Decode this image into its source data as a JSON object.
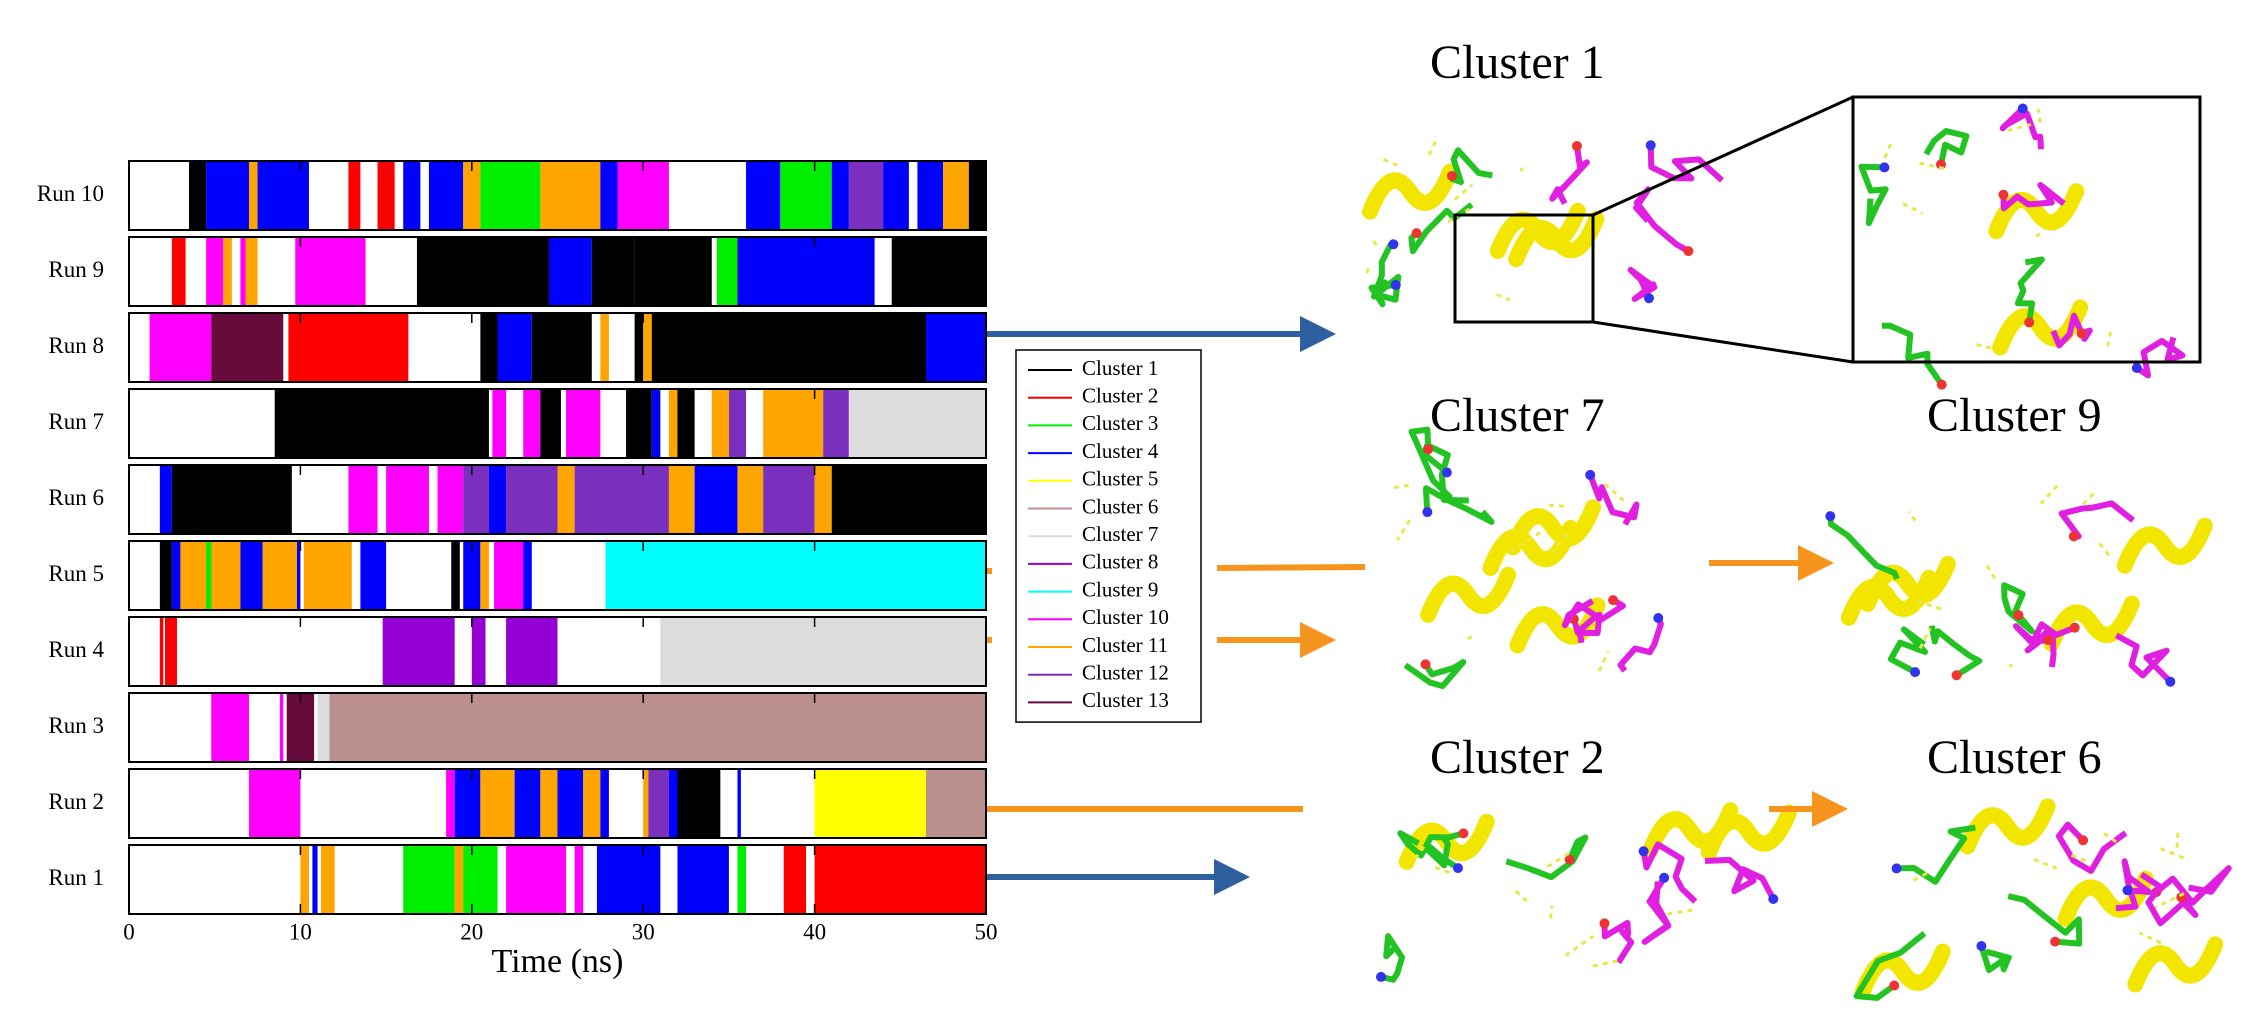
{
  "chart_data": {
    "type": "timeline",
    "xlabel": "Time (ns)",
    "xlim": [
      0,
      50
    ],
    "xticks": [
      0,
      10,
      20,
      30,
      40,
      50
    ],
    "legend": [
      {
        "name": "Cluster 1",
        "color": "#000000"
      },
      {
        "name": "Cluster 2",
        "color": "#ff0000"
      },
      {
        "name": "Cluster 3",
        "color": "#00ee00"
      },
      {
        "name": "Cluster 4",
        "color": "#0000ff"
      },
      {
        "name": "Cluster 5",
        "color": "#ffff00"
      },
      {
        "name": "Cluster 6",
        "color": "#bc8f8f"
      },
      {
        "name": "Cluster 7",
        "color": "#dcdcdc"
      },
      {
        "name": "Cluster 8",
        "color": "#9400d3"
      },
      {
        "name": "Cluster 9",
        "color": "#00ffff"
      },
      {
        "name": "Cluster 10",
        "color": "#ff00ff"
      },
      {
        "name": "Cluster 11",
        "color": "#ffa500"
      },
      {
        "name": "Cluster 12",
        "color": "#7b2fbe"
      },
      {
        "name": "Cluster 13",
        "color": "#670a3c"
      }
    ],
    "runs": [
      {
        "name": "Run 1",
        "segments": [
          {
            "cluster": "Cluster 11",
            "start": 10,
            "end": 10.5
          },
          {
            "cluster": "Cluster 4",
            "start": 10.7,
            "end": 11
          },
          {
            "cluster": "Cluster 11",
            "start": 11.2,
            "end": 12
          },
          {
            "cluster": "Cluster 3",
            "start": 16,
            "end": 19
          },
          {
            "cluster": "Cluster 11",
            "start": 19,
            "end": 19.5
          },
          {
            "cluster": "Cluster 3",
            "start": 19.5,
            "end": 21.5
          },
          {
            "cluster": "Cluster 10",
            "start": 22,
            "end": 25.5
          },
          {
            "cluster": "Cluster 10",
            "start": 26,
            "end": 26.5
          },
          {
            "cluster": "Cluster 4",
            "start": 27.3,
            "end": 31
          },
          {
            "cluster": "Cluster 4",
            "start": 32,
            "end": 35
          },
          {
            "cluster": "Cluster 3",
            "start": 35.5,
            "end": 36
          },
          {
            "cluster": "Cluster 2",
            "start": 38.2,
            "end": 39.5
          },
          {
            "cluster": "Cluster 2",
            "start": 40,
            "end": 50
          }
        ]
      },
      {
        "name": "Run 2",
        "segments": [
          {
            "cluster": "Cluster 10",
            "start": 7,
            "end": 10
          },
          {
            "cluster": "Cluster 10",
            "start": 18.5,
            "end": 19
          },
          {
            "cluster": "Cluster 4",
            "start": 19,
            "end": 20.5
          },
          {
            "cluster": "Cluster 11",
            "start": 20.5,
            "end": 22.5
          },
          {
            "cluster": "Cluster 4",
            "start": 22.5,
            "end": 24
          },
          {
            "cluster": "Cluster 11",
            "start": 24,
            "end": 25
          },
          {
            "cluster": "Cluster 4",
            "start": 25,
            "end": 26.5
          },
          {
            "cluster": "Cluster 11",
            "start": 26.5,
            "end": 27.5
          },
          {
            "cluster": "Cluster 4",
            "start": 27.5,
            "end": 28
          },
          {
            "cluster": "Cluster 11",
            "start": 30,
            "end": 30.3
          },
          {
            "cluster": "Cluster 12",
            "start": 30.3,
            "end": 31.5
          },
          {
            "cluster": "Cluster 4",
            "start": 31.5,
            "end": 32
          },
          {
            "cluster": "Cluster 1",
            "start": 32,
            "end": 34.5
          },
          {
            "cluster": "Cluster 4",
            "start": 35.5,
            "end": 35.7
          },
          {
            "cluster": "Cluster 5",
            "start": 40,
            "end": 46.5
          },
          {
            "cluster": "Cluster 6",
            "start": 46.5,
            "end": 50
          }
        ]
      },
      {
        "name": "Run 3",
        "segments": [
          {
            "cluster": "Cluster 10",
            "start": 4.8,
            "end": 7
          },
          {
            "cluster": "Cluster 10",
            "start": 8.8,
            "end": 9
          },
          {
            "cluster": "Cluster 13",
            "start": 9.2,
            "end": 10.8
          },
          {
            "cluster": "Cluster 7",
            "start": 11,
            "end": 11.7
          },
          {
            "cluster": "Cluster 6",
            "start": 11.7,
            "end": 50
          }
        ]
      },
      {
        "name": "Run 4",
        "segments": [
          {
            "cluster": "Cluster 2",
            "start": 1.8,
            "end": 2
          },
          {
            "cluster": "Cluster 2",
            "start": 2.1,
            "end": 2.8
          },
          {
            "cluster": "Cluster 8",
            "start": 14.8,
            "end": 19
          },
          {
            "cluster": "Cluster 8",
            "start": 20,
            "end": 20.8
          },
          {
            "cluster": "Cluster 8",
            "start": 22,
            "end": 25
          },
          {
            "cluster": "Cluster 7",
            "start": 31,
            "end": 50
          }
        ]
      },
      {
        "name": "Run 5",
        "segments": [
          {
            "cluster": "Cluster 1",
            "start": 1.8,
            "end": 2.5
          },
          {
            "cluster": "Cluster 4",
            "start": 2.5,
            "end": 3
          },
          {
            "cluster": "Cluster 11",
            "start": 3,
            "end": 5
          },
          {
            "cluster": "Cluster 3",
            "start": 4.5,
            "end": 4.8
          },
          {
            "cluster": "Cluster 11",
            "start": 5,
            "end": 6.5
          },
          {
            "cluster": "Cluster 4",
            "start": 6.5,
            "end": 7.8
          },
          {
            "cluster": "Cluster 11",
            "start": 7.8,
            "end": 9.8
          },
          {
            "cluster": "Cluster 4",
            "start": 9.8,
            "end": 10
          },
          {
            "cluster": "Cluster 11",
            "start": 10.2,
            "end": 13
          },
          {
            "cluster": "Cluster 4",
            "start": 13.5,
            "end": 15
          },
          {
            "cluster": "Cluster 1",
            "start": 18.8,
            "end": 19.3
          },
          {
            "cluster": "Cluster 4",
            "start": 19.5,
            "end": 20.5
          },
          {
            "cluster": "Cluster 11",
            "start": 20.5,
            "end": 21
          },
          {
            "cluster": "Cluster 10",
            "start": 21.3,
            "end": 23
          },
          {
            "cluster": "Cluster 4",
            "start": 23,
            "end": 23.5
          },
          {
            "cluster": "Cluster 9",
            "start": 27.8,
            "end": 50
          }
        ]
      },
      {
        "name": "Run 6",
        "segments": [
          {
            "cluster": "Cluster 4",
            "start": 1.8,
            "end": 2.5
          },
          {
            "cluster": "Cluster 1",
            "start": 2.5,
            "end": 9.5
          },
          {
            "cluster": "Cluster 10",
            "start": 12.8,
            "end": 14.5
          },
          {
            "cluster": "Cluster 10",
            "start": 15,
            "end": 17.5
          },
          {
            "cluster": "Cluster 10",
            "start": 18,
            "end": 19.5
          },
          {
            "cluster": "Cluster 12",
            "start": 19.5,
            "end": 21
          },
          {
            "cluster": "Cluster 4",
            "start": 21,
            "end": 22
          },
          {
            "cluster": "Cluster 12",
            "start": 22,
            "end": 25
          },
          {
            "cluster": "Cluster 11",
            "start": 25,
            "end": 26
          },
          {
            "cluster": "Cluster 12",
            "start": 26,
            "end": 31.5
          },
          {
            "cluster": "Cluster 11",
            "start": 31.5,
            "end": 33
          },
          {
            "cluster": "Cluster 4",
            "start": 33,
            "end": 35.5
          },
          {
            "cluster": "Cluster 11",
            "start": 35.5,
            "end": 37
          },
          {
            "cluster": "Cluster 12",
            "start": 37,
            "end": 40
          },
          {
            "cluster": "Cluster 11",
            "start": 40,
            "end": 41
          },
          {
            "cluster": "Cluster 1",
            "start": 41,
            "end": 50
          }
        ]
      },
      {
        "name": "Run 7",
        "segments": [
          {
            "cluster": "Cluster 1",
            "start": 8.5,
            "end": 21
          },
          {
            "cluster": "Cluster 10",
            "start": 21.2,
            "end": 22
          },
          {
            "cluster": "Cluster 10",
            "start": 23,
            "end": 24
          },
          {
            "cluster": "Cluster 1",
            "start": 24,
            "end": 25.2
          },
          {
            "cluster": "Cluster 10",
            "start": 25.5,
            "end": 27.5
          },
          {
            "cluster": "Cluster 1",
            "start": 29,
            "end": 30.5
          },
          {
            "cluster": "Cluster 4",
            "start": 30.5,
            "end": 31
          },
          {
            "cluster": "Cluster 11",
            "start": 31.5,
            "end": 32
          },
          {
            "cluster": "Cluster 1",
            "start": 32,
            "end": 33
          },
          {
            "cluster": "Cluster 11",
            "start": 34,
            "end": 35
          },
          {
            "cluster": "Cluster 12",
            "start": 35,
            "end": 36
          },
          {
            "cluster": "Cluster 11",
            "start": 37,
            "end": 40.5
          },
          {
            "cluster": "Cluster 12",
            "start": 40.5,
            "end": 42
          },
          {
            "cluster": "Cluster 7",
            "start": 42,
            "end": 50
          }
        ]
      },
      {
        "name": "Run 8",
        "segments": [
          {
            "cluster": "Cluster 10",
            "start": 1.2,
            "end": 4.8
          },
          {
            "cluster": "Cluster 13",
            "start": 4.8,
            "end": 9
          },
          {
            "cluster": "Cluster 2",
            "start": 9.3,
            "end": 16.3
          },
          {
            "cluster": "Cluster 1",
            "start": 20.5,
            "end": 21.5
          },
          {
            "cluster": "Cluster 4",
            "start": 21.5,
            "end": 23.5
          },
          {
            "cluster": "Cluster 1",
            "start": 23.5,
            "end": 27
          },
          {
            "cluster": "Cluster 11",
            "start": 27.5,
            "end": 28
          },
          {
            "cluster": "Cluster 1",
            "start": 29.5,
            "end": 30
          },
          {
            "cluster": "Cluster 11",
            "start": 30,
            "end": 30.5
          },
          {
            "cluster": "Cluster 1",
            "start": 30.5,
            "end": 46.5
          },
          {
            "cluster": "Cluster 4",
            "start": 46.5,
            "end": 50
          }
        ]
      },
      {
        "name": "Run 9",
        "segments": [
          {
            "cluster": "Cluster 2",
            "start": 2.5,
            "end": 3.3
          },
          {
            "cluster": "Cluster 10",
            "start": 4.5,
            "end": 5.5
          },
          {
            "cluster": "Cluster 11",
            "start": 5.5,
            "end": 6
          },
          {
            "cluster": "Cluster 10",
            "start": 6.5,
            "end": 7
          },
          {
            "cluster": "Cluster 11",
            "start": 6.8,
            "end": 7.5
          },
          {
            "cluster": "Cluster 10",
            "start": 9.7,
            "end": 13.8
          },
          {
            "cluster": "Cluster 1",
            "start": 16.8,
            "end": 24.5
          },
          {
            "cluster": "Cluster 4",
            "start": 24.5,
            "end": 27
          },
          {
            "cluster": "Cluster 1",
            "start": 27,
            "end": 29.5
          },
          {
            "cluster": "Cluster 1",
            "start": 29.5,
            "end": 34
          },
          {
            "cluster": "Cluster 3",
            "start": 34.3,
            "end": 35.5
          },
          {
            "cluster": "Cluster 4",
            "start": 35.5,
            "end": 43.5
          },
          {
            "cluster": "Cluster 1",
            "start": 44.5,
            "end": 50
          }
        ]
      },
      {
        "name": "Run 10",
        "segments": [
          {
            "cluster": "Cluster 1",
            "start": 3.5,
            "end": 4.5
          },
          {
            "cluster": "Cluster 4",
            "start": 4.5,
            "end": 7
          },
          {
            "cluster": "Cluster 11",
            "start": 7,
            "end": 7.5
          },
          {
            "cluster": "Cluster 4",
            "start": 7.5,
            "end": 10.5
          },
          {
            "cluster": "Cluster 2",
            "start": 12.8,
            "end": 13.5
          },
          {
            "cluster": "Cluster 2",
            "start": 14.5,
            "end": 15.5
          },
          {
            "cluster": "Cluster 4",
            "start": 16,
            "end": 17
          },
          {
            "cluster": "Cluster 4",
            "start": 17.5,
            "end": 19.5
          },
          {
            "cluster": "Cluster 11",
            "start": 19.5,
            "end": 20.5
          },
          {
            "cluster": "Cluster 3",
            "start": 20.5,
            "end": 24
          },
          {
            "cluster": "Cluster 11",
            "start": 24,
            "end": 27.5
          },
          {
            "cluster": "Cluster 4",
            "start": 27.5,
            "end": 28.5
          },
          {
            "cluster": "Cluster 10",
            "start": 28.5,
            "end": 31.5
          },
          {
            "cluster": "Cluster 4",
            "start": 36,
            "end": 38
          },
          {
            "cluster": "Cluster 3",
            "start": 38,
            "end": 41
          },
          {
            "cluster": "Cluster 4",
            "start": 41,
            "end": 42
          },
          {
            "cluster": "Cluster 12",
            "start": 42,
            "end": 44
          },
          {
            "cluster": "Cluster 4",
            "start": 44,
            "end": 45.5
          },
          {
            "cluster": "Cluster 4",
            "start": 46,
            "end": 47.5
          },
          {
            "cluster": "Cluster 11",
            "start": 47.5,
            "end": 49
          },
          {
            "cluster": "Cluster 1",
            "start": 49,
            "end": 50
          }
        ]
      }
    ]
  },
  "panels": [
    {
      "label": "Cluster 1"
    },
    {
      "label": "Cluster 7"
    },
    {
      "label": "Cluster 9"
    },
    {
      "label": "Cluster 2"
    },
    {
      "label": "Cluster 6"
    }
  ]
}
